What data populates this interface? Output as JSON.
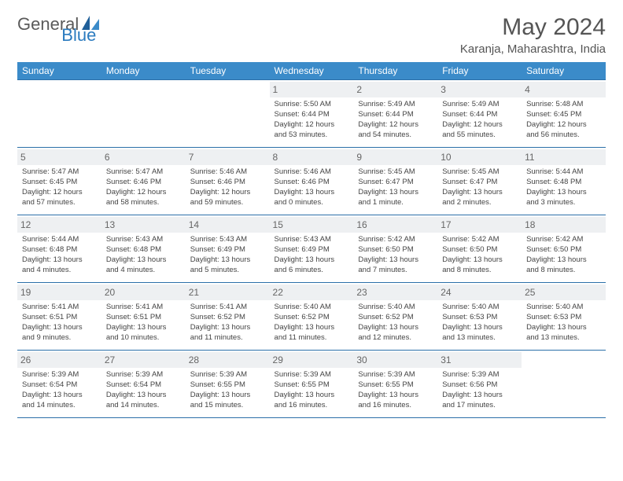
{
  "logo": {
    "general": "General",
    "blue": "Blue"
  },
  "title": "May 2024",
  "location": "Karanja, Maharashtra, India",
  "colors": {
    "header_bg": "#3b8bc9",
    "header_text": "#ffffff",
    "border": "#2b6fa8",
    "daynum_bg": "#eef0f2",
    "text": "#444444",
    "logo_gray": "#5a5a5a",
    "logo_blue": "#2b7bbf"
  },
  "day_headers": [
    "Sunday",
    "Monday",
    "Tuesday",
    "Wednesday",
    "Thursday",
    "Friday",
    "Saturday"
  ],
  "weeks": [
    [
      {
        "n": "",
        "empty": true
      },
      {
        "n": "",
        "empty": true
      },
      {
        "n": "",
        "empty": true
      },
      {
        "n": "1",
        "sr": "5:50 AM",
        "ss": "6:44 PM",
        "dl": "12 hours and 53 minutes."
      },
      {
        "n": "2",
        "sr": "5:49 AM",
        "ss": "6:44 PM",
        "dl": "12 hours and 54 minutes."
      },
      {
        "n": "3",
        "sr": "5:49 AM",
        "ss": "6:44 PM",
        "dl": "12 hours and 55 minutes."
      },
      {
        "n": "4",
        "sr": "5:48 AM",
        "ss": "6:45 PM",
        "dl": "12 hours and 56 minutes."
      }
    ],
    [
      {
        "n": "5",
        "sr": "5:47 AM",
        "ss": "6:45 PM",
        "dl": "12 hours and 57 minutes."
      },
      {
        "n": "6",
        "sr": "5:47 AM",
        "ss": "6:46 PM",
        "dl": "12 hours and 58 minutes."
      },
      {
        "n": "7",
        "sr": "5:46 AM",
        "ss": "6:46 PM",
        "dl": "12 hours and 59 minutes."
      },
      {
        "n": "8",
        "sr": "5:46 AM",
        "ss": "6:46 PM",
        "dl": "13 hours and 0 minutes."
      },
      {
        "n": "9",
        "sr": "5:45 AM",
        "ss": "6:47 PM",
        "dl": "13 hours and 1 minute."
      },
      {
        "n": "10",
        "sr": "5:45 AM",
        "ss": "6:47 PM",
        "dl": "13 hours and 2 minutes."
      },
      {
        "n": "11",
        "sr": "5:44 AM",
        "ss": "6:48 PM",
        "dl": "13 hours and 3 minutes."
      }
    ],
    [
      {
        "n": "12",
        "sr": "5:44 AM",
        "ss": "6:48 PM",
        "dl": "13 hours and 4 minutes."
      },
      {
        "n": "13",
        "sr": "5:43 AM",
        "ss": "6:48 PM",
        "dl": "13 hours and 4 minutes."
      },
      {
        "n": "14",
        "sr": "5:43 AM",
        "ss": "6:49 PM",
        "dl": "13 hours and 5 minutes."
      },
      {
        "n": "15",
        "sr": "5:43 AM",
        "ss": "6:49 PM",
        "dl": "13 hours and 6 minutes."
      },
      {
        "n": "16",
        "sr": "5:42 AM",
        "ss": "6:50 PM",
        "dl": "13 hours and 7 minutes."
      },
      {
        "n": "17",
        "sr": "5:42 AM",
        "ss": "6:50 PM",
        "dl": "13 hours and 8 minutes."
      },
      {
        "n": "18",
        "sr": "5:42 AM",
        "ss": "6:50 PM",
        "dl": "13 hours and 8 minutes."
      }
    ],
    [
      {
        "n": "19",
        "sr": "5:41 AM",
        "ss": "6:51 PM",
        "dl": "13 hours and 9 minutes."
      },
      {
        "n": "20",
        "sr": "5:41 AM",
        "ss": "6:51 PM",
        "dl": "13 hours and 10 minutes."
      },
      {
        "n": "21",
        "sr": "5:41 AM",
        "ss": "6:52 PM",
        "dl": "13 hours and 11 minutes."
      },
      {
        "n": "22",
        "sr": "5:40 AM",
        "ss": "6:52 PM",
        "dl": "13 hours and 11 minutes."
      },
      {
        "n": "23",
        "sr": "5:40 AM",
        "ss": "6:52 PM",
        "dl": "13 hours and 12 minutes."
      },
      {
        "n": "24",
        "sr": "5:40 AM",
        "ss": "6:53 PM",
        "dl": "13 hours and 13 minutes."
      },
      {
        "n": "25",
        "sr": "5:40 AM",
        "ss": "6:53 PM",
        "dl": "13 hours and 13 minutes."
      }
    ],
    [
      {
        "n": "26",
        "sr": "5:39 AM",
        "ss": "6:54 PM",
        "dl": "13 hours and 14 minutes."
      },
      {
        "n": "27",
        "sr": "5:39 AM",
        "ss": "6:54 PM",
        "dl": "13 hours and 14 minutes."
      },
      {
        "n": "28",
        "sr": "5:39 AM",
        "ss": "6:55 PM",
        "dl": "13 hours and 15 minutes."
      },
      {
        "n": "29",
        "sr": "5:39 AM",
        "ss": "6:55 PM",
        "dl": "13 hours and 16 minutes."
      },
      {
        "n": "30",
        "sr": "5:39 AM",
        "ss": "6:55 PM",
        "dl": "13 hours and 16 minutes."
      },
      {
        "n": "31",
        "sr": "5:39 AM",
        "ss": "6:56 PM",
        "dl": "13 hours and 17 minutes."
      },
      {
        "n": "",
        "empty": true
      }
    ]
  ],
  "labels": {
    "sunrise": "Sunrise:",
    "sunset": "Sunset:",
    "daylight": "Daylight:"
  }
}
